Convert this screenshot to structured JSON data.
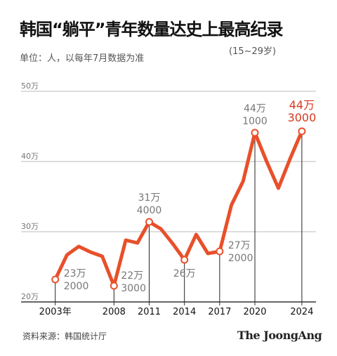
{
  "header": {
    "title": "韩国“躺平”青年数量达史上最高纪录",
    "unit_note": "单位：人，以每年7月数据为准",
    "age_note": "(15~29岁)"
  },
  "footer": {
    "source": "资料来源：韩国统计厅",
    "logo": "The JoongAng"
  },
  "colors": {
    "line": "#e8502a",
    "highlight": "#d9381e",
    "label": "#777777",
    "axis": "#333333",
    "grid": "#bbbbbb"
  },
  "chart_data": {
    "type": "line",
    "title": "韩国“躺平”青年数量达史上最高纪录",
    "ylabel": "单位：人，以每年7月数据为准",
    "ylim": [
      200000,
      500000
    ],
    "yticks": [
      {
        "value": 500000,
        "label": "50万"
      },
      {
        "value": 400000,
        "label": "40万"
      },
      {
        "value": 300000,
        "label": "30万"
      },
      {
        "value": 200000,
        "label": "20万"
      }
    ],
    "xticks": [
      {
        "value": 2003,
        "label": "2003年"
      },
      {
        "value": 2008,
        "label": "2008"
      },
      {
        "value": 2011,
        "label": "2011"
      },
      {
        "value": 2014,
        "label": "2014"
      },
      {
        "value": 2017,
        "label": "2017"
      },
      {
        "value": 2020,
        "label": "2020"
      },
      {
        "value": 2024,
        "label": "2024"
      }
    ],
    "series": [
      {
        "x": [
          2003,
          2004,
          2005,
          2006,
          2007,
          2008,
          2009,
          2010,
          2011,
          2012,
          2013,
          2014,
          2015,
          2016,
          2017,
          2018,
          2019,
          2020,
          2021,
          2022,
          2023,
          2024
        ],
        "values": [
          232000,
          267000,
          279000,
          271000,
          265000,
          223000,
          288000,
          284000,
          314000,
          304000,
          283000,
          260000,
          296000,
          269000,
          272000,
          338000,
          372000,
          441000,
          400000,
          362000,
          404000,
          443000
        ]
      }
    ],
    "annotations": [
      {
        "x": 2003,
        "y": 232000,
        "lines": [
          "23万",
          "2000"
        ],
        "pos": "right",
        "highlight": false
      },
      {
        "x": 2008,
        "y": 223000,
        "lines": [
          "22万",
          "3000"
        ],
        "pos": "below-right",
        "highlight": false
      },
      {
        "x": 2011,
        "y": 314000,
        "lines": [
          "31万",
          "4000"
        ],
        "pos": "above",
        "highlight": false
      },
      {
        "x": 2014,
        "y": 260000,
        "lines": [
          "26万"
        ],
        "pos": "below",
        "highlight": false
      },
      {
        "x": 2017,
        "y": 272000,
        "lines": [
          "27万",
          "2000"
        ],
        "pos": "right",
        "highlight": false
      },
      {
        "x": 2020,
        "y": 441000,
        "lines": [
          "44万",
          "1000"
        ],
        "pos": "above",
        "highlight": false
      },
      {
        "x": 2024,
        "y": 443000,
        "lines": [
          "44万",
          "3000"
        ],
        "pos": "above",
        "highlight": true
      }
    ]
  }
}
